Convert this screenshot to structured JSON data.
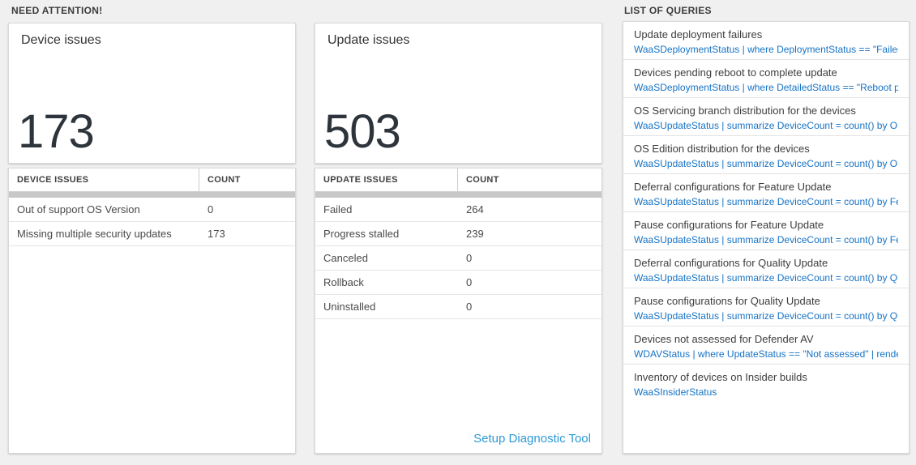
{
  "sections": {
    "need_attention": "NEED ATTENTION!",
    "list_of_queries": "LIST OF QUERIES"
  },
  "cards": [
    {
      "title": "Device issues",
      "count": "173",
      "table": {
        "headers": [
          "DEVICE ISSUES",
          "COUNT"
        ],
        "rows": [
          {
            "label": "Out of support OS Version",
            "value": "0"
          },
          {
            "label": "Missing multiple security updates",
            "value": "173"
          }
        ]
      }
    },
    {
      "title": "Update issues",
      "count": "503",
      "table": {
        "headers": [
          "UPDATE ISSUES",
          "COUNT"
        ],
        "rows": [
          {
            "label": "Failed",
            "value": "264"
          },
          {
            "label": "Progress stalled",
            "value": "239"
          },
          {
            "label": "Canceled",
            "value": "0"
          },
          {
            "label": "Rollback",
            "value": "0"
          },
          {
            "label": "Uninstalled",
            "value": "0"
          }
        ]
      },
      "footer_link": "Setup Diagnostic Tool"
    }
  ],
  "queries": {
    "items": [
      {
        "title": "Update deployment failures",
        "query": "WaaSDeploymentStatus | where DeploymentStatus == \"Failed\" |..."
      },
      {
        "title": "Devices pending reboot to complete update",
        "query": "WaaSDeploymentStatus | where DetailedStatus == \"Reboot pend..."
      },
      {
        "title": "OS Servicing branch distribution for the devices",
        "query": "WaaSUpdateStatus | summarize DeviceCount = count() by OSSer..."
      },
      {
        "title": "OS Edition distribution for the devices",
        "query": "WaaSUpdateStatus | summarize DeviceCount = count() by OSEdit..."
      },
      {
        "title": "Deferral configurations for Feature Update",
        "query": "WaaSUpdateStatus | summarize DeviceCount = count() by Featur..."
      },
      {
        "title": "Pause configurations for Feature Update",
        "query": "WaaSUpdateStatus | summarize DeviceCount = count() by Featur..."
      },
      {
        "title": "Deferral configurations for Quality Update",
        "query": "WaaSUpdateStatus | summarize DeviceCount = count() by Qualit..."
      },
      {
        "title": "Pause configurations for Quality Update",
        "query": "WaaSUpdateStatus | summarize DeviceCount = count() by Qualit..."
      },
      {
        "title": "Devices not assessed for Defender AV",
        "query": "WDAVStatus | where UpdateStatus == \"Not assessed\" | render ta..."
      },
      {
        "title": "Inventory of devices on Insider builds",
        "query": "WaaSInsiderStatus"
      }
    ]
  },
  "colors": {
    "page_background": "#f0f0f0",
    "card_background": "#ffffff",
    "query_link_blue": "#1673c5",
    "footer_link_blue": "#2f99d7",
    "big_number_text": "#2e343b",
    "gray_scroll_bar": "#c8c8c8"
  }
}
